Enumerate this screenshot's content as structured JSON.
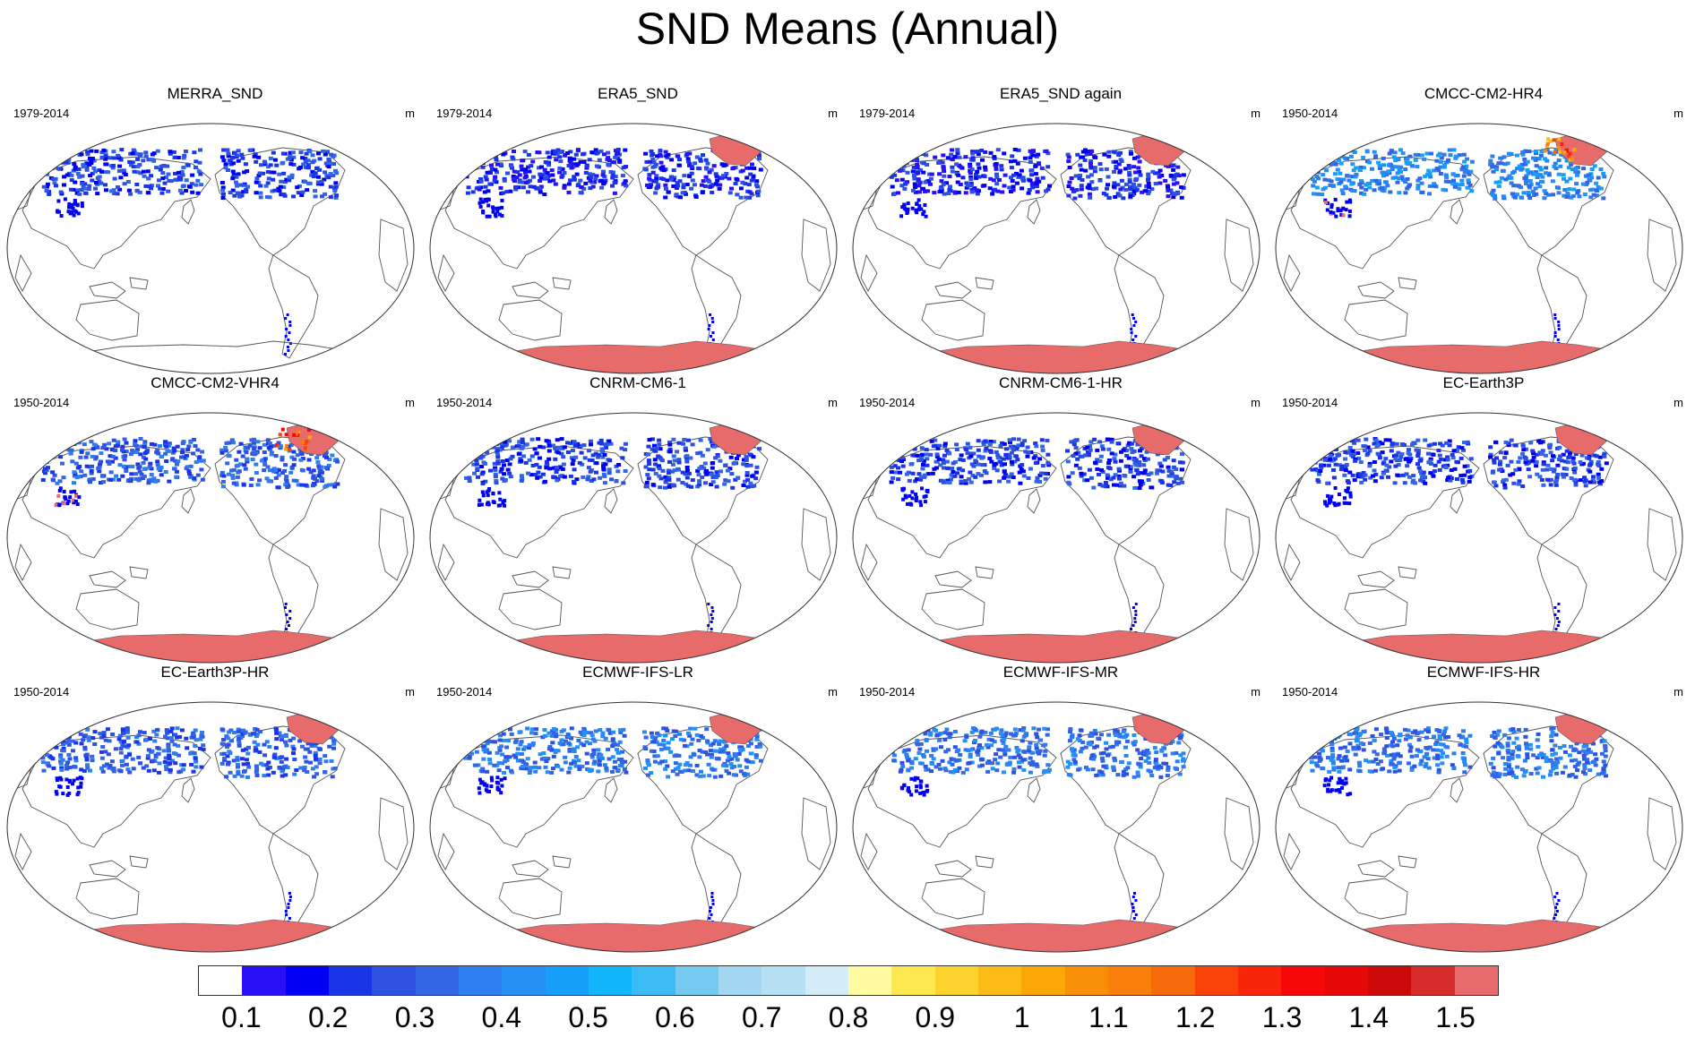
{
  "title": "SND Means (Annual)",
  "panels": [
    {
      "name": "MERRA_SND",
      "period": "1979-2014",
      "units": "m",
      "antarctica": false,
      "greenland": false,
      "nh_level": 0.15,
      "hot_spots": false
    },
    {
      "name": "ERA5_SND",
      "period": "1979-2014",
      "units": "m",
      "antarctica": true,
      "greenland": true,
      "nh_level": 0.1,
      "hot_spots": false
    },
    {
      "name": "ERA5_SND again",
      "period": "1979-2014",
      "units": "m",
      "antarctica": true,
      "greenland": true,
      "nh_level": 0.1,
      "hot_spots": false
    },
    {
      "name": "CMCC-CM2-HR4",
      "period": "1950-2014",
      "units": "m",
      "antarctica": true,
      "greenland": true,
      "nh_level": 0.45,
      "hot_spots": true
    },
    {
      "name": "CMCC-CM2-VHR4",
      "period": "1950-2014",
      "units": "m",
      "antarctica": true,
      "greenland": true,
      "nh_level": 0.3,
      "hot_spots": true
    },
    {
      "name": "CNRM-CM6-1",
      "period": "1950-2014",
      "units": "m",
      "antarctica": true,
      "greenland": true,
      "nh_level": 0.2,
      "hot_spots": false
    },
    {
      "name": "CNRM-CM6-1-HR",
      "period": "1950-2014",
      "units": "m",
      "antarctica": true,
      "greenland": true,
      "nh_level": 0.2,
      "hot_spots": false
    },
    {
      "name": "EC-Earth3P",
      "period": "1950-2014",
      "units": "m",
      "antarctica": true,
      "greenland": true,
      "nh_level": 0.15,
      "hot_spots": false
    },
    {
      "name": "EC-Earth3P-HR",
      "period": "1950-2014",
      "units": "m",
      "antarctica": true,
      "greenland": true,
      "nh_level": 0.25,
      "hot_spots": false
    },
    {
      "name": "ECMWF-IFS-LR",
      "period": "1950-2014",
      "units": "m",
      "antarctica": true,
      "greenland": true,
      "nh_level": 0.4,
      "hot_spots": false
    },
    {
      "name": "ECMWF-IFS-MR",
      "period": "1950-2014",
      "units": "m",
      "antarctica": true,
      "greenland": true,
      "nh_level": 0.35,
      "hot_spots": false
    },
    {
      "name": "ECMWF-IFS-HR",
      "period": "1950-2014",
      "units": "m",
      "antarctica": true,
      "greenland": true,
      "nh_level": 0.35,
      "hot_spots": false
    }
  ],
  "colorbar": {
    "labels": [
      "0.1",
      "0.2",
      "0.3",
      "0.4",
      "0.5",
      "0.6",
      "0.7",
      "0.8",
      "0.9",
      "1",
      "1.1",
      "1.2",
      "1.3",
      "1.4",
      "1.5"
    ],
    "colors": [
      "#ffffff",
      "#2a10f5",
      "#0000f5",
      "#1a35e8",
      "#2d52e2",
      "#3365e5",
      "#2f7ef0",
      "#248ff5",
      "#159ff8",
      "#10b5fb",
      "#3cbcf5",
      "#75c8ef",
      "#a2d6f1",
      "#b8e0f4",
      "#d3ecf8",
      "#fefba0",
      "#fde84f",
      "#fcd22c",
      "#fbbc18",
      "#fba705",
      "#f98f07",
      "#f77f0a",
      "#f76a0a",
      "#f84208",
      "#f82508",
      "#f70808",
      "#e50808",
      "#cc0a0a",
      "#d72c2c",
      "#e86b6b"
    ]
  }
}
